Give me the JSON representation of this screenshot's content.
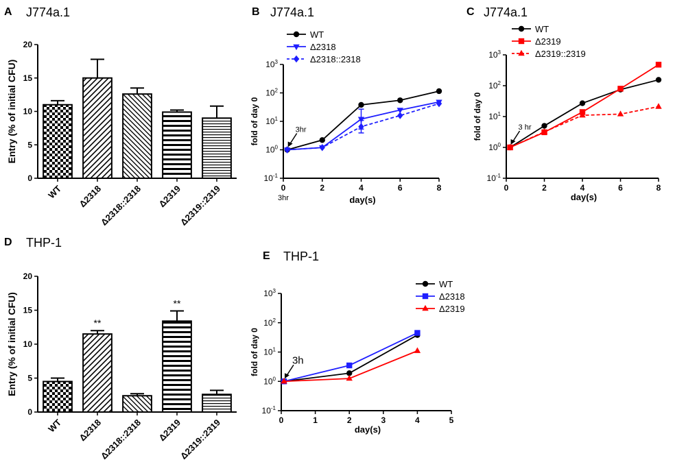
{
  "chart_data": [
    {
      "panel": "A",
      "type": "bar",
      "title": "J774a.1",
      "ylabel": "Entry (% of initial CFU)",
      "xlabel": "",
      "ylim": [
        0,
        20
      ],
      "yticks": [
        0,
        5,
        10,
        15,
        20
      ],
      "categories": [
        "WT",
        "Δ2318",
        "Δ2318::2318",
        "Δ2319",
        "Δ2319::2319"
      ],
      "values": [
        11.0,
        15.0,
        12.6,
        9.9,
        9.0
      ],
      "errors": [
        0.6,
        2.8,
        0.9,
        0.3,
        1.8
      ],
      "patterns": [
        "checker",
        "diag-right",
        "diag-left",
        "horiz",
        "horiz-fine"
      ],
      "significance": [
        "",
        "",
        "",
        "",
        ""
      ]
    },
    {
      "panel": "B",
      "type": "line",
      "title": "J774a.1",
      "ylabel": "fold of day 0",
      "xlabel": "day(s)",
      "yscale": "log",
      "ylim_exp": [
        -1,
        3
      ],
      "ytick_exps": [
        -1,
        0,
        1,
        2,
        3
      ],
      "xlim": [
        0,
        8
      ],
      "xticks": [
        0,
        2,
        4,
        6,
        8
      ],
      "x_extra_label": "3hr",
      "annotation": {
        "text": "3hr",
        "x": 0.2,
        "y": 1
      },
      "series": [
        {
          "name": "WT",
          "color": "#000000",
          "marker": "circle",
          "dash": false,
          "x": [
            0.2,
            2,
            4,
            6,
            8
          ],
          "y": [
            1,
            2.2,
            38,
            55,
            115
          ],
          "err": [
            0,
            0,
            0,
            0,
            0
          ]
        },
        {
          "name": "Δ2318",
          "color": "#1f1fff",
          "marker": "triangle-down",
          "dash": false,
          "x": [
            0.2,
            2,
            4,
            6,
            8
          ],
          "y": [
            1,
            1.2,
            12,
            25,
            48
          ],
          "err": [
            0,
            0,
            0.35,
            0,
            0
          ]
        },
        {
          "name": "Δ2318::2318",
          "color": "#1f1fff",
          "marker": "diamond",
          "dash": true,
          "x": [
            0.2,
            2,
            4,
            6,
            8
          ],
          "y": [
            1,
            1.2,
            6.5,
            16,
            42
          ],
          "err": [
            0,
            0,
            0.22,
            0,
            0
          ]
        }
      ]
    },
    {
      "panel": "C",
      "type": "line",
      "title": "J774a.1",
      "ylabel": "fold of day 0",
      "xlabel": "day(s)",
      "yscale": "log",
      "ylim_exp": [
        -1,
        3
      ],
      "ytick_exps": [
        -1,
        0,
        1,
        2,
        3
      ],
      "xlim": [
        0,
        8
      ],
      "xticks": [
        0,
        2,
        4,
        6,
        8
      ],
      "x_extra_label": "",
      "annotation": {
        "text": "3 hr",
        "x": 0.2,
        "y": 1
      },
      "series": [
        {
          "name": "WT",
          "color": "#000000",
          "marker": "circle",
          "dash": false,
          "x": [
            0.2,
            2,
            4,
            6,
            8
          ],
          "y": [
            1,
            5,
            27,
            75,
            155
          ],
          "err": [
            0,
            0,
            0,
            0,
            0
          ]
        },
        {
          "name": "Δ2319",
          "color": "#ff0000",
          "marker": "square",
          "dash": false,
          "x": [
            0.2,
            2,
            4,
            6,
            8
          ],
          "y": [
            1,
            3.1,
            14,
            80,
            480
          ],
          "err": [
            0,
            0,
            0,
            0,
            0
          ]
        },
        {
          "name": "Δ2319::2319",
          "color": "#ff0000",
          "marker": "triangle",
          "dash": true,
          "x": [
            0.2,
            2,
            4,
            6,
            8
          ],
          "y": [
            1,
            3.2,
            11,
            12,
            21
          ],
          "err": [
            0,
            0,
            0,
            0,
            0
          ]
        }
      ]
    },
    {
      "panel": "D",
      "type": "bar",
      "title": "THP-1",
      "ylabel": "Entry (% of initial CFU)",
      "xlabel": "",
      "ylim": [
        0,
        20
      ],
      "yticks": [
        0,
        5,
        10,
        15,
        20
      ],
      "categories": [
        "WT",
        "Δ2318",
        "Δ2318::2318",
        "Δ2319",
        "Δ2319::2319"
      ],
      "values": [
        4.5,
        11.5,
        2.4,
        13.4,
        2.6
      ],
      "errors": [
        0.5,
        0.5,
        0.3,
        1.5,
        0.6
      ],
      "patterns": [
        "checker",
        "diag-right",
        "diag-left",
        "horiz",
        "horiz-fine"
      ],
      "significance": [
        "",
        "**",
        "",
        "**",
        ""
      ]
    },
    {
      "panel": "E",
      "type": "line",
      "title": "THP-1",
      "ylabel": "fold of day 0",
      "xlabel": "day(s)",
      "yscale": "log",
      "ylim_exp": [
        -1,
        3
      ],
      "ytick_exps": [
        -1,
        0,
        1,
        2,
        3
      ],
      "xlim": [
        0,
        5
      ],
      "xticks": [
        0,
        1,
        2,
        3,
        4,
        5
      ],
      "x_extra_label": "",
      "annotation": {
        "text": "3h",
        "x": 0.08,
        "y": 1
      },
      "series": [
        {
          "name": "WT",
          "color": "#000000",
          "marker": "circle",
          "dash": false,
          "x": [
            0.08,
            2,
            4
          ],
          "y": [
            1,
            1.9,
            38
          ],
          "err": [
            0,
            0,
            0
          ]
        },
        {
          "name": "Δ2318",
          "color": "#1f1fff",
          "marker": "square",
          "dash": false,
          "x": [
            0.08,
            2,
            4
          ],
          "y": [
            1,
            3.5,
            45
          ],
          "err": [
            0,
            0,
            0
          ]
        },
        {
          "name": "Δ2319",
          "color": "#ff0000",
          "marker": "triangle",
          "dash": false,
          "x": [
            0.08,
            2,
            4
          ],
          "y": [
            1,
            1.25,
            11
          ],
          "err": [
            0,
            0,
            0
          ]
        }
      ]
    }
  ]
}
